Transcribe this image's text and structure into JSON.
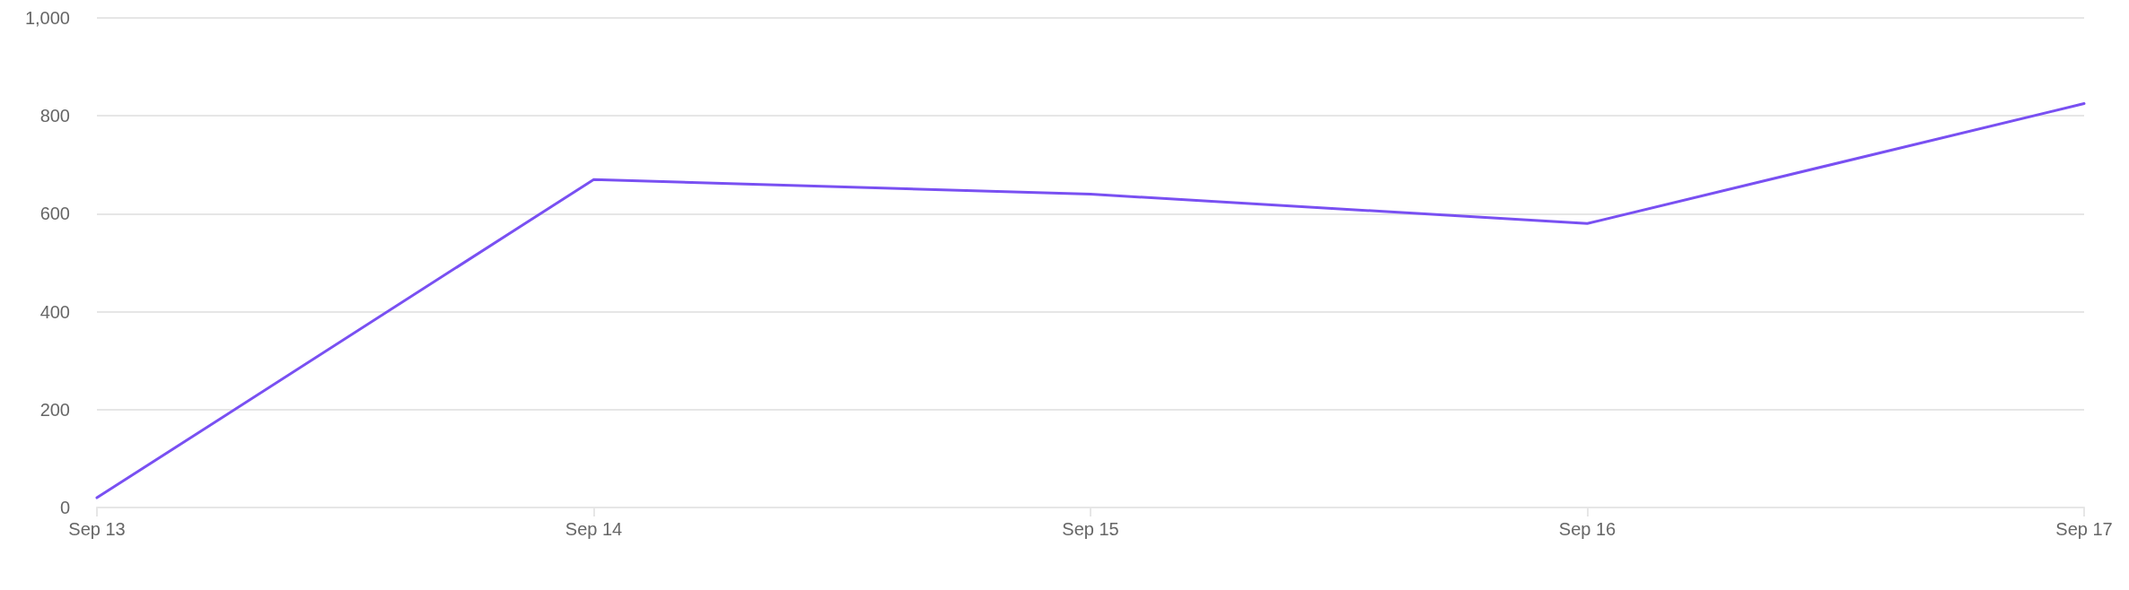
{
  "chart_data": {
    "type": "line",
    "categories": [
      "Sep 13",
      "Sep 14",
      "Sep 15",
      "Sep 16",
      "Sep 17"
    ],
    "series": [
      {
        "color": "#7950f2",
        "values": [
          20,
          670,
          640,
          580,
          825
        ]
      }
    ],
    "ylim": [
      0,
      1000
    ],
    "yticks": [
      0,
      200,
      400,
      600,
      800,
      {
        "value": 1000,
        "label": "1,000"
      }
    ],
    "grid": "y",
    "marker": "none",
    "line_style": "solid"
  }
}
